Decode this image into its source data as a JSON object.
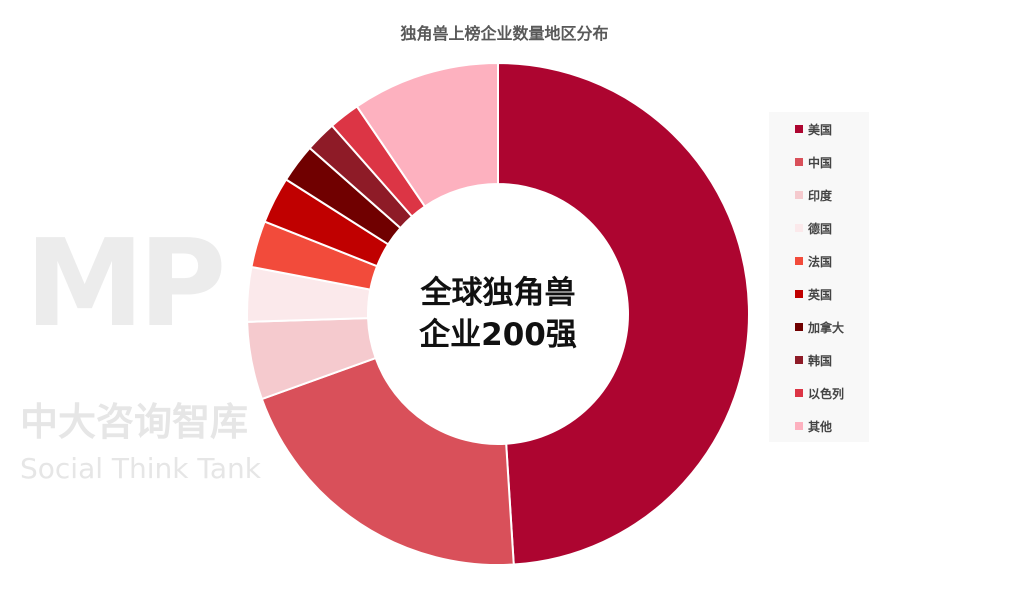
{
  "watermark": {
    "logo": "MP",
    "cn": "中大咨询智库",
    "en": "Social Think Tank"
  },
  "chart_data": {
    "type": "pie",
    "title": "独角兽上榜企业数量地区分布",
    "center_label": [
      "全球独角兽",
      "企业200强"
    ],
    "legend_position": "right",
    "categories": [
      "美国",
      "中国",
      "印度",
      "德国",
      "法国",
      "英国",
      "加拿大",
      "韩国",
      "以色列",
      "其他"
    ],
    "values": [
      98,
      41,
      10,
      7,
      6,
      6,
      5,
      4,
      4,
      19
    ],
    "colors": [
      "#AD0530",
      "#D9505A",
      "#F5CACE",
      "#FBE9EB",
      "#F24B3B",
      "#C00000",
      "#700000",
      "#8E1B27",
      "#DC3545",
      "#FDB1BF"
    ]
  }
}
